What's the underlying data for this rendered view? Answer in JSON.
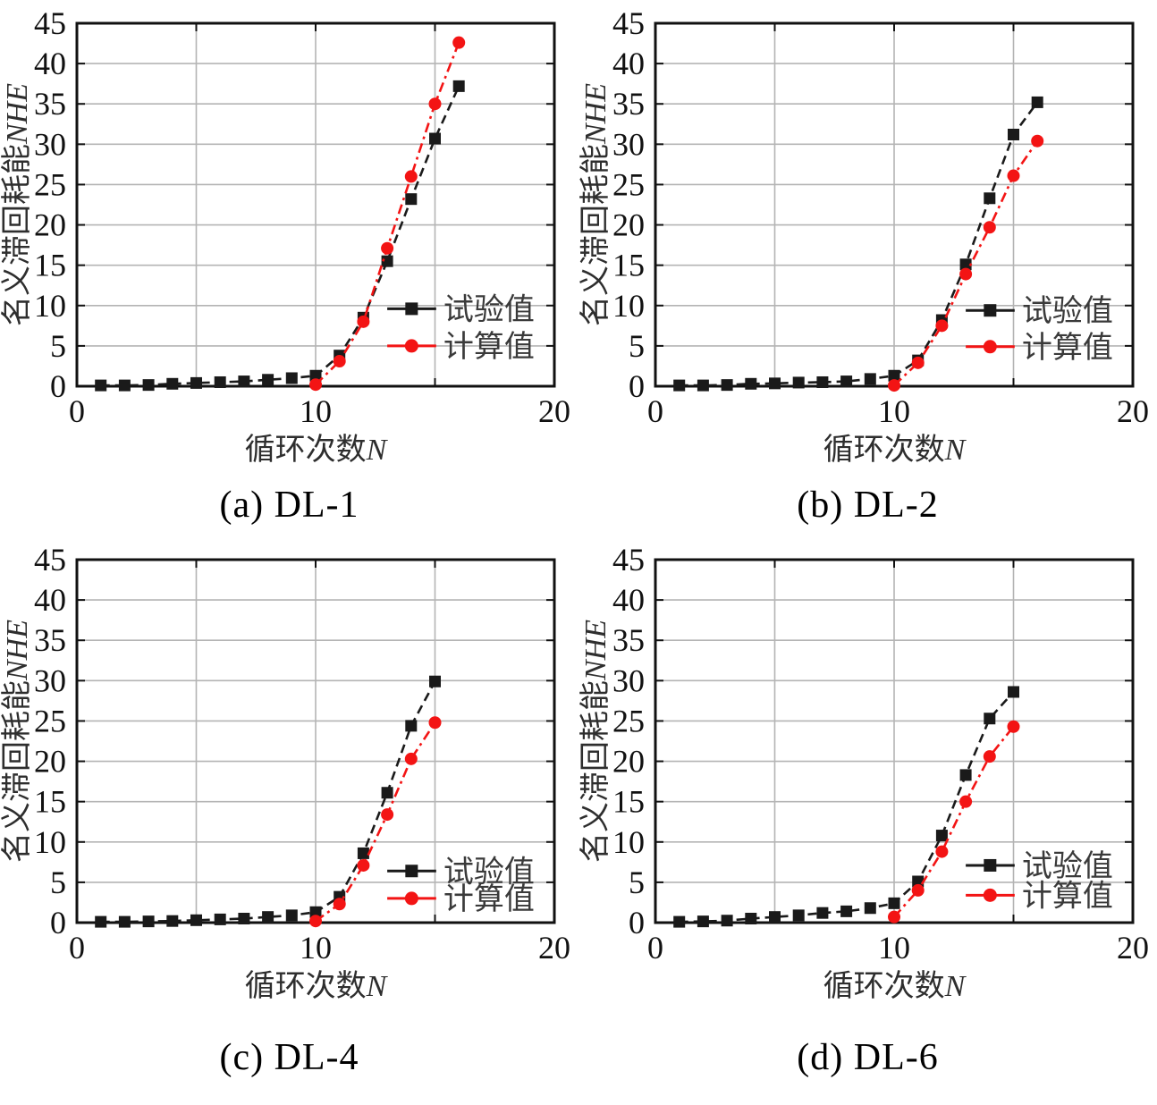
{
  "page": {
    "background": "#ffffff"
  },
  "style": {
    "experimental_color": "#1a1a1a",
    "calculated_color": "#f31414",
    "grid_color": "#b4b4b4",
    "frame_color": "#111111",
    "tick_label_color": "#111111",
    "axis_label_color": "#2e2e2e",
    "legend_text_color": "#3a3a3a"
  },
  "axes": {
    "xlabel": "循环次数N",
    "xlabel_cn": "循环次数",
    "xlabel_var": "N",
    "ylabel": "名义滞回耗能NHE",
    "ylabel_cn": "名义滞回耗能",
    "ylabel_var": "NHE",
    "xlim": [
      0,
      20
    ],
    "ylim": [
      0,
      45
    ],
    "xtick_values": [
      0,
      10,
      20
    ],
    "xtick_labels": [
      "0",
      "10",
      "20"
    ],
    "ytick_values": [
      0,
      5,
      10,
      15,
      20,
      25,
      30,
      35,
      40,
      45
    ],
    "ytick_labels": [
      "0",
      "5",
      "10",
      "15",
      "20",
      "25",
      "30",
      "35",
      "40",
      "45"
    ],
    "grid_x": [
      5,
      10,
      15
    ],
    "grid_y": [
      5,
      10,
      15,
      20,
      25,
      30,
      35,
      40
    ],
    "grid_on": true
  },
  "legend": {
    "experimental": "试验值",
    "calculated": "计算值",
    "position": "inside-right-middle"
  },
  "chart_data": [
    {
      "type": "line",
      "caption": "(a) DL-1",
      "legend_y": [
        9.6,
        5.0
      ],
      "series": [
        {
          "name": "试验值",
          "key": "experimental",
          "marker": "square",
          "x": [
            1,
            2,
            3,
            4,
            5,
            6,
            7,
            8,
            9,
            10,
            11,
            12,
            13,
            14,
            15,
            16
          ],
          "y": [
            0.1,
            0.1,
            0.15,
            0.3,
            0.4,
            0.5,
            0.6,
            0.8,
            1.0,
            1.3,
            3.8,
            8.5,
            15.5,
            23.2,
            30.7,
            37.2
          ]
        },
        {
          "name": "计算值",
          "key": "calculated",
          "marker": "circle",
          "x": [
            10,
            11,
            12,
            13,
            14,
            15,
            16
          ],
          "y": [
            0.2,
            3.1,
            8.0,
            17.1,
            26.0,
            35.0,
            42.6
          ]
        }
      ]
    },
    {
      "type": "line",
      "caption": "(b) DL-2",
      "legend_y": [
        9.4,
        4.9
      ],
      "series": [
        {
          "name": "试验值",
          "key": "experimental",
          "marker": "square",
          "x": [
            1,
            2,
            3,
            4,
            5,
            6,
            7,
            8,
            9,
            10,
            11,
            12,
            13,
            14,
            15,
            16
          ],
          "y": [
            0.1,
            0.1,
            0.15,
            0.3,
            0.35,
            0.45,
            0.5,
            0.6,
            0.9,
            1.3,
            3.2,
            8.2,
            15.1,
            23.3,
            31.2,
            35.2
          ]
        },
        {
          "name": "计算值",
          "key": "calculated",
          "marker": "circle",
          "x": [
            10,
            11,
            12,
            13,
            14,
            15,
            16
          ],
          "y": [
            0.1,
            2.9,
            7.5,
            13.9,
            19.7,
            26.1,
            30.4
          ]
        }
      ]
    },
    {
      "type": "line",
      "caption": "(c) DL-4",
      "legend_y": [
        6.4,
        3.0
      ],
      "series": [
        {
          "name": "试验值",
          "key": "experimental",
          "marker": "square",
          "x": [
            1,
            2,
            3,
            4,
            5,
            6,
            7,
            8,
            9,
            10,
            11,
            12,
            13,
            14,
            15
          ],
          "y": [
            0.1,
            0.1,
            0.15,
            0.2,
            0.3,
            0.4,
            0.5,
            0.7,
            0.9,
            1.3,
            3.2,
            8.6,
            16.1,
            24.4,
            29.9
          ]
        },
        {
          "name": "计算值",
          "key": "calculated",
          "marker": "circle",
          "x": [
            10,
            11,
            12,
            13,
            14,
            15
          ],
          "y": [
            0.2,
            2.3,
            7.1,
            13.4,
            20.3,
            24.8
          ]
        }
      ]
    },
    {
      "type": "line",
      "caption": "(d) DL-6",
      "legend_y": [
        7.1,
        3.4
      ],
      "series": [
        {
          "name": "试验值",
          "key": "experimental",
          "marker": "square",
          "x": [
            1,
            2,
            3,
            4,
            5,
            6,
            7,
            8,
            9,
            10,
            11,
            12,
            13,
            14,
            15
          ],
          "y": [
            0.1,
            0.15,
            0.25,
            0.5,
            0.7,
            0.9,
            1.2,
            1.4,
            1.8,
            2.4,
            5.1,
            10.8,
            18.3,
            25.3,
            28.6
          ]
        },
        {
          "name": "计算值",
          "key": "calculated",
          "marker": "circle",
          "x": [
            10,
            11,
            12,
            13,
            14,
            15
          ],
          "y": [
            0.7,
            4.0,
            8.8,
            15.0,
            20.6,
            24.3
          ]
        }
      ]
    }
  ]
}
